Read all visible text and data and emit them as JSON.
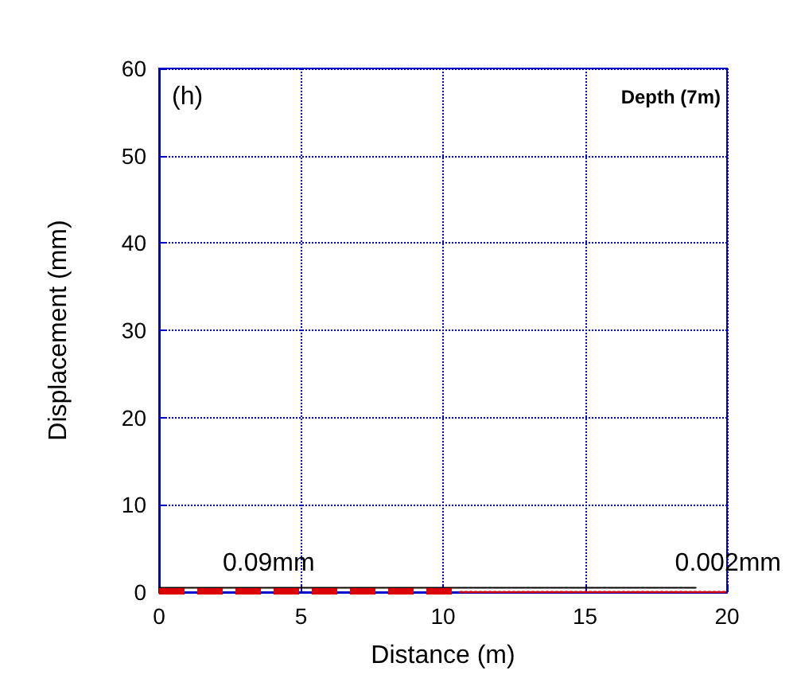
{
  "chart_data": {
    "type": "line",
    "xlabel": "Distance (m)",
    "ylabel": "Displacement (mm)",
    "series": [
      {
        "x": [
          0,
          18.9
        ],
        "values": [
          0.5,
          0.5
        ],
        "color": "#000000",
        "line_style": "solid"
      },
      {
        "x": [
          0,
          10.6
        ],
        "values": [
          0.09,
          0.09
        ],
        "color": "#dd0000",
        "line_style": "dashed"
      },
      {
        "x": [
          10.6,
          20
        ],
        "values": [
          0.002,
          0.002
        ],
        "color": "#dd0000",
        "line_style": "dotted"
      }
    ],
    "xlim": [
      0,
      20
    ],
    "xticks": [
      0,
      5,
      10,
      15,
      20
    ],
    "ylim": [
      0,
      60
    ],
    "yticks": [
      0,
      10,
      20,
      30,
      40,
      50,
      60
    ],
    "grid": true,
    "marker": "none",
    "annotations": [
      "(h)",
      "Depth (7m)",
      "0.09mm",
      "0.002mm"
    ]
  }
}
